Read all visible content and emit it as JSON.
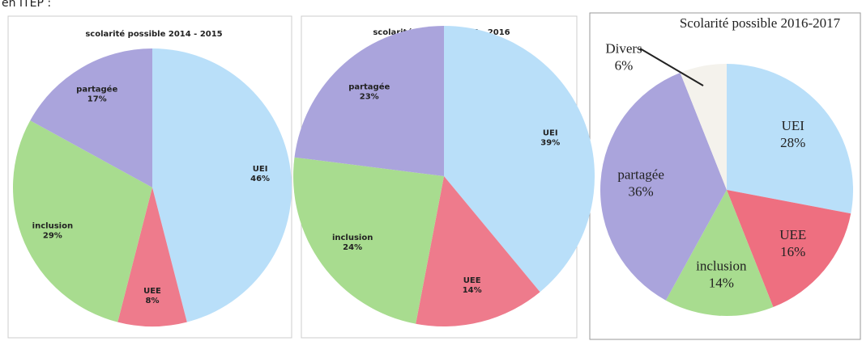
{
  "caption": "en ITEP :",
  "chart_data": [
    {
      "type": "pie",
      "title": "scolarité possible 2014 - 2015",
      "categories": [
        "UEI",
        "UEE",
        "inclusion",
        "partagée"
      ],
      "values": [
        46,
        8,
        29,
        17
      ],
      "value_labels": [
        "46%",
        "8%",
        "29%",
        "17%"
      ],
      "colors": [
        "#b9dff9",
        "#ee7b8c",
        "#a8dc8f",
        "#aaa4dc"
      ]
    },
    {
      "type": "pie",
      "title": "scolarité possible 2015 - 2016",
      "categories": [
        "UEI",
        "UEE",
        "inclusion",
        "partagée"
      ],
      "values": [
        39,
        14,
        24,
        23
      ],
      "value_labels": [
        "39%",
        "14%",
        "24%",
        "23%"
      ],
      "colors": [
        "#b9dff9",
        "#ee7b8c",
        "#a8dc8f",
        "#aaa4dc"
      ]
    },
    {
      "type": "pie",
      "title": "Scolarité possible 2016-2017",
      "categories": [
        "UEI",
        "UEE",
        "inclusion",
        "partagée",
        "Divers"
      ],
      "values": [
        28,
        16,
        14,
        36,
        6
      ],
      "value_labels": [
        "28%",
        "16%",
        "14%",
        "36%",
        "6%"
      ],
      "colors": [
        "#b9dff9",
        "#ee6f80",
        "#a8dc8f",
        "#aaa4dc",
        "#f4f2ec"
      ]
    }
  ]
}
